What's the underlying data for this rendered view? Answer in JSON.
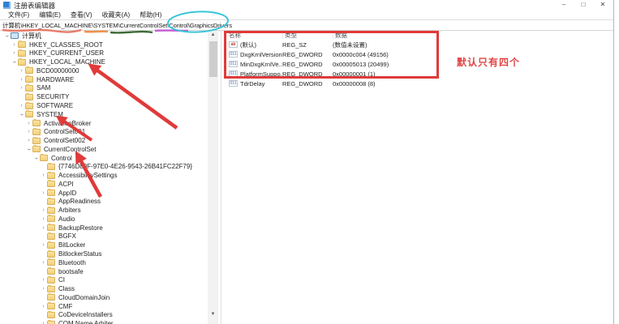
{
  "window": {
    "title": "注册表编辑器",
    "controls": {
      "minimize": "–",
      "maximize": "□",
      "close": "✕"
    }
  },
  "menu": {
    "items": [
      {
        "label": "文件(F)"
      },
      {
        "label": "编辑(E)"
      },
      {
        "label": "查看(V)"
      },
      {
        "label": "收藏夹(A)"
      },
      {
        "label": "帮助(H)"
      }
    ]
  },
  "address_bar": {
    "path": "计算机\\HKEY_LOCAL_MACHINE\\SYSTEM\\CurrentControlSet\\Control\\GraphicsDrivers"
  },
  "tree": {
    "items": [
      {
        "label": "计算机",
        "level": 0,
        "expand": "expanded",
        "icon": "computer-icon"
      },
      {
        "label": "HKEY_CLASSES_ROOT",
        "level": 1,
        "expand": "collapsed",
        "icon": "folder-icon"
      },
      {
        "label": "HKEY_CURRENT_USER",
        "level": 1,
        "expand": "collapsed",
        "icon": "folder-icon"
      },
      {
        "label": "HKEY_LOCAL_MACHINE",
        "level": 1,
        "expand": "expanded",
        "icon": "folder-icon"
      },
      {
        "label": "BCD00000000",
        "level": 2,
        "expand": "collapsed",
        "icon": "folder-icon"
      },
      {
        "label": "HARDWARE",
        "level": 2,
        "expand": "collapsed",
        "icon": "folder-icon"
      },
      {
        "label": "SAM",
        "level": 2,
        "expand": "collapsed",
        "icon": "folder-icon"
      },
      {
        "label": "SECURITY",
        "level": 2,
        "expand": "none",
        "icon": "folder-icon"
      },
      {
        "label": "SOFTWARE",
        "level": 2,
        "expand": "collapsed",
        "icon": "folder-icon"
      },
      {
        "label": "SYSTEM",
        "level": 2,
        "expand": "expanded",
        "icon": "folder-icon"
      },
      {
        "label": "ActivationBroker",
        "level": 3,
        "expand": "collapsed",
        "icon": "folder-icon"
      },
      {
        "label": "ControlSet001",
        "level": 3,
        "expand": "collapsed",
        "icon": "folder-icon"
      },
      {
        "label": "ControlSet002",
        "level": 3,
        "expand": "collapsed",
        "icon": "folder-icon"
      },
      {
        "label": "CurrentControlSet",
        "level": 3,
        "expand": "expanded",
        "icon": "folder-icon"
      },
      {
        "label": "Control",
        "level": 4,
        "expand": "expanded",
        "icon": "folder-icon"
      },
      {
        "label": "{7746D80F-97E0-4E26-9543-26B41FC22F79}",
        "level": 5,
        "expand": "none",
        "icon": "folder-icon"
      },
      {
        "label": "AccessibilitySettings",
        "level": 5,
        "expand": "collapsed",
        "icon": "folder-icon"
      },
      {
        "label": "ACPI",
        "level": 5,
        "expand": "none",
        "icon": "folder-icon"
      },
      {
        "label": "AppID",
        "level": 5,
        "expand": "collapsed",
        "icon": "folder-icon"
      },
      {
        "label": "AppReadiness",
        "level": 5,
        "expand": "none",
        "icon": "folder-icon"
      },
      {
        "label": "Arbiters",
        "level": 5,
        "expand": "collapsed",
        "icon": "folder-icon"
      },
      {
        "label": "Audio",
        "level": 5,
        "expand": "collapsed",
        "icon": "folder-icon"
      },
      {
        "label": "BackupRestore",
        "level": 5,
        "expand": "collapsed",
        "icon": "folder-icon"
      },
      {
        "label": "BGFX",
        "level": 5,
        "expand": "none",
        "icon": "folder-icon"
      },
      {
        "label": "BitLocker",
        "level": 5,
        "expand": "collapsed",
        "icon": "folder-icon"
      },
      {
        "label": "BitlockerStatus",
        "level": 5,
        "expand": "none",
        "icon": "folder-icon"
      },
      {
        "label": "Bluetooth",
        "level": 5,
        "expand": "collapsed",
        "icon": "folder-icon"
      },
      {
        "label": "bootsafe",
        "level": 5,
        "expand": "none",
        "icon": "folder-icon"
      },
      {
        "label": "CI",
        "level": 5,
        "expand": "collapsed",
        "icon": "folder-icon"
      },
      {
        "label": "Class",
        "level": 5,
        "expand": "collapsed",
        "icon": "folder-icon"
      },
      {
        "label": "CloudDomainJoin",
        "level": 5,
        "expand": "none",
        "icon": "folder-icon"
      },
      {
        "label": "CMF",
        "level": 5,
        "expand": "collapsed",
        "icon": "folder-icon"
      },
      {
        "label": "CoDeviceInstallers",
        "level": 5,
        "expand": "none",
        "icon": "folder-icon"
      },
      {
        "label": "COM Name Arbiter",
        "level": 5,
        "expand": "collapsed",
        "icon": "folder-icon"
      }
    ]
  },
  "values": {
    "columns": [
      "名称",
      "类型",
      "数据"
    ],
    "rows": [
      {
        "name": "(默认)",
        "type": "REG_SZ",
        "data": "(数值未设置)",
        "icon": "string-value-icon"
      },
      {
        "name": "DxgKrnlVersion",
        "type": "REG_DWORD",
        "data": "0x0000c004 (49156)",
        "icon": "dword-value-icon"
      },
      {
        "name": "MinDxgKrnlVe...",
        "type": "REG_DWORD",
        "data": "0x00005013 (20499)",
        "icon": "dword-value-icon"
      },
      {
        "name": "PlatformSuppo...",
        "type": "REG_DWORD",
        "data": "0x00000001 (1)",
        "icon": "dword-value-icon"
      },
      {
        "name": "TdrDelay",
        "type": "REG_DWORD",
        "data": "0x00000008 (8)",
        "icon": "dword-value-icon"
      }
    ]
  },
  "annotations": {
    "note": {
      "text": "默认只有四个",
      "color": "#e04545"
    },
    "highlight_box_color": "#e03a3a",
    "arrow_color": "#e03a3a",
    "ellipse": {
      "color": "#38c6d8",
      "target": "GraphicsDrivers"
    },
    "underlines": [
      {
        "target": "计算机\\HKEY_LOCAL_MACHINE",
        "color": "#e87a68"
      },
      {
        "target": "SYSTEM",
        "color": "#f0924c"
      },
      {
        "target": "CurrentControlSet",
        "color": "#3e6b39"
      },
      {
        "target": "Control",
        "color": "#c45ad2"
      }
    ]
  }
}
